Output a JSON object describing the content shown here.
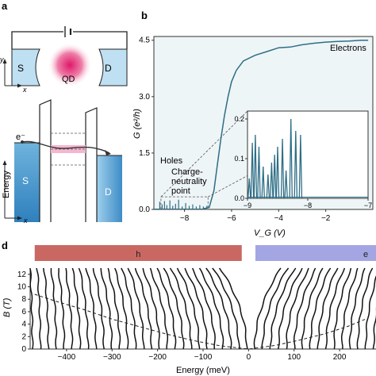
{
  "panels": {
    "a": {
      "letter": "a",
      "source_label": "S",
      "drain_label": "D",
      "dot_label": "QD",
      "y_axis": "y",
      "x_axis": "x",
      "electron_label": "e⁻",
      "energy_axis": "Energy",
      "energy_x_axis": "x",
      "source_label_2": "S",
      "drain_label_2": "D"
    },
    "b": {
      "letter": "b",
      "electrons_label": "Electrons",
      "holes_label": "Holes",
      "cnp_line1": "Charge-",
      "cnp_line2": "neutrality",
      "cnp_line3": "point"
    },
    "d": {
      "letter": "d",
      "hole_band_label": "h",
      "electron_band_label": "e"
    }
  },
  "chart_data": [
    {
      "type": "line",
      "panel": "b",
      "xlabel": "V_G (V)",
      "ylabel": "G (e²/h)",
      "xlim": [
        -9.3,
        0
      ],
      "ylim": [
        0,
        4.6
      ],
      "xticks": [
        -8,
        -6,
        -4,
        -2
      ],
      "xtick_labels": [
        "−8",
        "−6",
        "−4",
        "−2"
      ],
      "yticks": [
        0.0,
        1.5,
        3.0,
        4.5
      ],
      "ytick_labels": [
        "0.0",
        "1.5",
        "3.0",
        "4.5"
      ],
      "series": [
        {
          "x": [
            -7.2,
            -6.95,
            -6.75,
            -6.6,
            -6.45,
            -6.3,
            -6.15,
            -6.0,
            -5.8,
            -5.5,
            -5.0,
            -4.5,
            -4.0,
            -3.5,
            -3.0,
            -2.5,
            -2.0,
            -1.5,
            -1.0,
            -0.5,
            -0.2
          ],
          "y": [
            0.02,
            0.05,
            0.5,
            1.2,
            1.9,
            2.5,
            3.0,
            3.4,
            3.7,
            3.95,
            4.1,
            4.2,
            4.3,
            4.32,
            4.38,
            4.42,
            4.45,
            4.47,
            4.48,
            4.5,
            4.5
          ]
        }
      ],
      "peaks_x": [
        -9.05,
        -8.95,
        -8.85,
        -8.75,
        -8.62,
        -8.5,
        -8.38,
        -8.25,
        -8.1,
        -7.95,
        -7.8,
        -7.65,
        -7.5,
        -7.35,
        -7.2,
        -7.05
      ],
      "peaks_y": [
        0.09,
        0.05,
        0.1,
        0.04,
        0.11,
        0.03,
        0.06,
        0.12,
        0.02,
        0.07,
        0.03,
        0.05,
        0.02,
        0.04,
        0.02,
        0.03
      ]
    },
    {
      "type": "line",
      "panel": "b-inset",
      "xlim": [
        -9,
        -7
      ],
      "ylim": [
        0,
        0.22
      ],
      "xticks": [
        -9,
        -8,
        -7
      ],
      "xtick_labels": [
        "−9",
        "−8",
        "−7"
      ],
      "yticks": [
        0.0,
        0.1,
        0.2
      ],
      "ytick_labels": [
        "0.0",
        "0.1",
        "0.2"
      ],
      "peaks_x": [
        -8.97,
        -8.92,
        -8.87,
        -8.81,
        -8.74,
        -8.66,
        -8.6,
        -8.55,
        -8.5,
        -8.42,
        -8.36,
        -8.28,
        -8.2,
        -8.12
      ],
      "peaks_y": [
        0.05,
        0.14,
        0.16,
        0.13,
        0.08,
        0.06,
        0.09,
        0.11,
        0.13,
        0.15,
        0.07,
        0.2,
        0.17,
        0.16
      ]
    },
    {
      "type": "line",
      "panel": "d",
      "xlabel": "Energy (meV)",
      "ylabel": "B (T)",
      "xlim": [
        -480,
        280
      ],
      "ylim": [
        0,
        13
      ],
      "xticks": [
        -400,
        -300,
        -200,
        -100,
        0,
        100,
        200
      ],
      "xtick_labels": [
        "−400",
        "−300",
        "−200",
        "−100",
        "0",
        "100",
        "200"
      ],
      "yticks": [
        0,
        2,
        4,
        6,
        8,
        10,
        12
      ],
      "ytick_labels": [
        "0",
        "2",
        "4",
        "6",
        "8",
        "10",
        "12"
      ],
      "hole_band_range": [
        -470,
        -15
      ],
      "electron_band_range": [
        15,
        280
      ],
      "dashed_boundary_x": [
        -470,
        -420,
        -360,
        -300,
        -240,
        -180,
        -130,
        -90,
        -60,
        0,
        60,
        110,
        170,
        220,
        260
      ],
      "dashed_boundary_y": [
        8.8,
        7.6,
        6.3,
        4.8,
        3.6,
        2.4,
        1.5,
        0.9,
        0.5,
        0.0,
        0.6,
        1.4,
        2.5,
        3.7,
        4.9
      ],
      "level_count": 44
    }
  ]
}
